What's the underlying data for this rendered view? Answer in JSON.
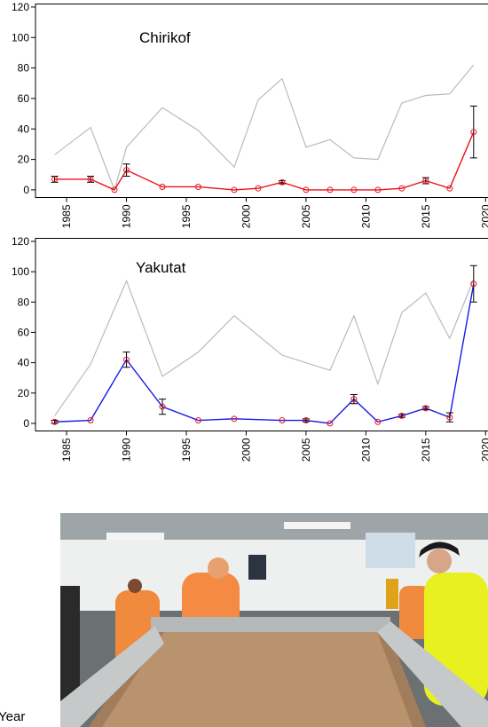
{
  "chart_data": [
    {
      "type": "line",
      "title": "Chirikof",
      "xlim": [
        1982.4,
        2020.2
      ],
      "xticks": [
        1985,
        1990,
        1995,
        2000,
        2005,
        2010,
        2015,
        2020
      ],
      "ylim": [
        -5,
        122
      ],
      "yticks": [
        0,
        20,
        40,
        60,
        80,
        100,
        120
      ],
      "series": [
        {
          "color": "#bbbbbb",
          "x": [
            1984,
            1987,
            1989,
            1990,
            1993,
            1996,
            1999,
            2001,
            2003,
            2005,
            2007,
            2009,
            2011,
            2013,
            2015,
            2017,
            2019
          ],
          "values": [
            23,
            41,
            0,
            28,
            54,
            39,
            15,
            59,
            73,
            28,
            33,
            21,
            20,
            57,
            62,
            63,
            82
          ]
        },
        {
          "color": "#e8141e",
          "marker_color": "#e8141e",
          "x": [
            1984,
            1987,
            1989,
            1990,
            1993,
            1996,
            1999,
            2001,
            2003,
            2005,
            2007,
            2009,
            2011,
            2013,
            2015,
            2017,
            2019
          ],
          "values": [
            7,
            7,
            0,
            13,
            2,
            2,
            0,
            1,
            5,
            0,
            0,
            0,
            0,
            1,
            6,
            1,
            38
          ],
          "errors": [
            2,
            2,
            null,
            4,
            null,
            null,
            null,
            null,
            1,
            null,
            null,
            null,
            null,
            null,
            2,
            null,
            17
          ]
        }
      ]
    },
    {
      "type": "line",
      "title": "Yakutat",
      "xlim": [
        1982.4,
        2020.2
      ],
      "xticks": [
        1985,
        1990,
        1995,
        2000,
        2005,
        2010,
        2015,
        2020
      ],
      "ylim": [
        -5,
        122
      ],
      "yticks": [
        0,
        20,
        40,
        60,
        80,
        100,
        120
      ],
      "series": [
        {
          "color": "#bbbbbb",
          "x": [
            1984,
            1987,
            1990,
            1993,
            1996,
            1999,
            2003,
            2007,
            2009,
            2011,
            2013,
            2015,
            2017,
            2019
          ],
          "values": [
            5,
            39,
            94,
            31,
            47,
            71,
            45,
            35,
            71,
            26,
            73,
            86,
            56,
            95
          ]
        },
        {
          "color": "#1a1ae6",
          "marker_color": "#e8141e",
          "x": [
            1984,
            1987,
            1990,
            1993,
            1996,
            1999,
            2003,
            2005,
            2007,
            2009,
            2011,
            2013,
            2015,
            2017,
            2019
          ],
          "values": [
            1,
            2,
            42,
            11,
            2,
            3,
            2,
            2,
            0,
            16,
            1,
            5,
            10,
            4,
            92
          ],
          "errors": [
            1,
            null,
            5,
            5,
            null,
            null,
            null,
            1,
            null,
            3,
            null,
            1,
            1,
            3,
            12
          ]
        }
      ]
    }
  ],
  "x_label": "Year"
}
